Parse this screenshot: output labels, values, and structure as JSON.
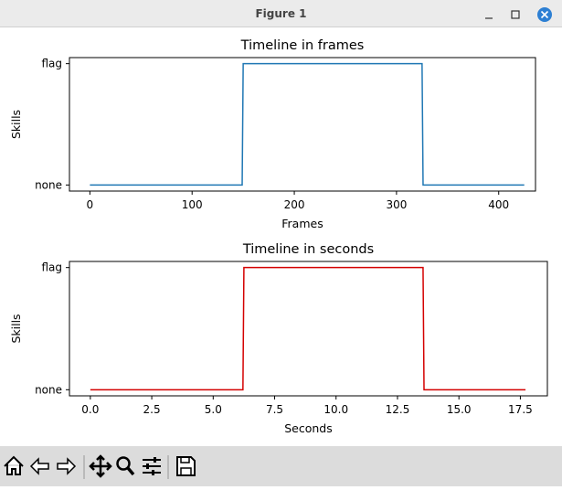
{
  "window": {
    "title": "Figure 1"
  },
  "chart_data": [
    {
      "type": "line",
      "title": "Timeline in frames",
      "xlabel": "Frames",
      "ylabel": "Skills",
      "x": [
        0,
        149,
        150,
        325,
        326,
        425
      ],
      "values": [
        0,
        0,
        1,
        1,
        0,
        0
      ],
      "color": "#1f77b4",
      "xlim": [
        -20,
        436
      ],
      "xticks": [
        0,
        100,
        200,
        300,
        400
      ],
      "ylim": [
        -0.05,
        1.05
      ],
      "yticks": [
        {
          "value": 0,
          "label": "none"
        },
        {
          "value": 1,
          "label": "flag"
        }
      ]
    },
    {
      "type": "line",
      "title": "Timeline in seconds",
      "xlabel": "Seconds",
      "ylabel": "Skills",
      "x": [
        0,
        6.21,
        6.25,
        13.54,
        13.58,
        17.71
      ],
      "values": [
        0,
        0,
        1,
        1,
        0,
        0
      ],
      "color": "#d40000",
      "xlim": [
        -0.85,
        18.6
      ],
      "xticks": [
        {
          "value": 0,
          "label": "0.0"
        },
        {
          "value": 2.5,
          "label": "2.5"
        },
        {
          "value": 5,
          "label": "5.0"
        },
        {
          "value": 7.5,
          "label": "7.5"
        },
        {
          "value": 10,
          "label": "10.0"
        },
        {
          "value": 12.5,
          "label": "12.5"
        },
        {
          "value": 15,
          "label": "15.0"
        },
        {
          "value": 17.5,
          "label": "17.5"
        }
      ],
      "ylim": [
        -0.05,
        1.05
      ],
      "yticks": [
        {
          "value": 0,
          "label": "none"
        },
        {
          "value": 1,
          "label": "flag"
        }
      ]
    }
  ]
}
